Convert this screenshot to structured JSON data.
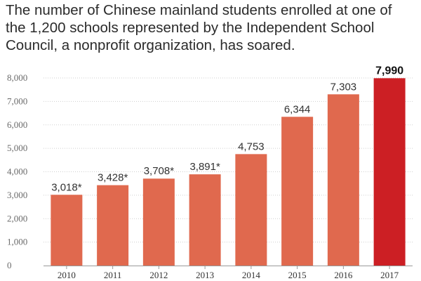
{
  "title": "The number of Chinese mainland students enrolled at one of the 1,200 schools represented by the Independent School Council, a nonprofit organization, has soared.",
  "colors": {
    "bar": "#e0694e",
    "highlight": "#cc1f24",
    "grid": "#cfcfcf",
    "axis": "#999999"
  },
  "chart_data": {
    "type": "bar",
    "title": "The number of Chinese mainland students enrolled at one of the 1,200 schools represented by the Independent School Council, a nonprofit organization, has soared.",
    "xlabel": "",
    "ylabel": "",
    "ylim": [
      0,
      8000
    ],
    "yticks": [
      0,
      1000,
      2000,
      3000,
      4000,
      5000,
      6000,
      7000,
      8000
    ],
    "ytick_labels": [
      "0",
      "1,000",
      "2,000",
      "3,000",
      "4,000",
      "5,000",
      "6,000",
      "7,000",
      "8,000"
    ],
    "categories": [
      "2010",
      "2011",
      "2012",
      "2013",
      "2014",
      "2015",
      "2016",
      "2017"
    ],
    "values": [
      3018,
      3428,
      3708,
      3891,
      4753,
      6344,
      7303,
      7990
    ],
    "data_labels": [
      "3,018*",
      "3,428*",
      "3,708*",
      "3,891*",
      "4,753",
      "6,344",
      "7,303",
      "7,990"
    ],
    "highlight_category": "2017",
    "grid": true
  }
}
